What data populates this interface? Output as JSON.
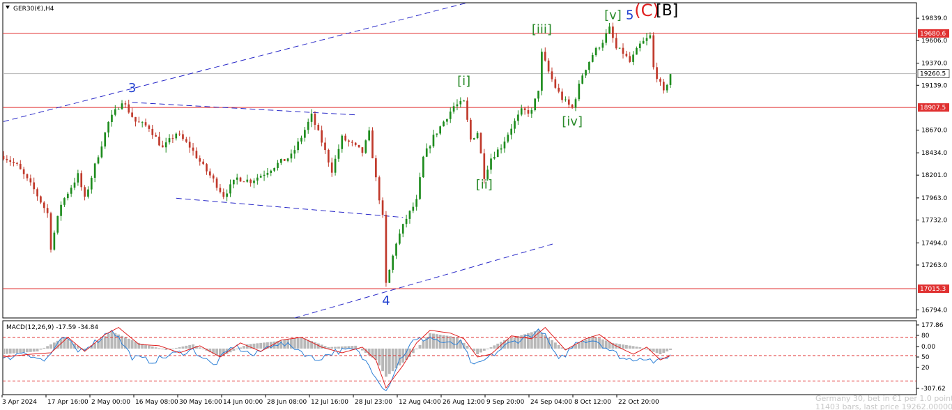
{
  "window": {
    "symbol_title": "GER30(€),H4"
  },
  "colors": {
    "background": "#ffffff",
    "bull_candle": "#1e8c1e",
    "bear_candle": "#c0392b",
    "level_line": "#e03030",
    "price_line": "#b4b4b4",
    "channel_line": "#2828c8",
    "wave_green": "#2a8a2a",
    "wave_blue": "#1f3fd0",
    "wave_red": "#e02020",
    "wave_black": "#000000",
    "macd_histogram": "#b8b8b8",
    "macd_signal": "#e02020",
    "macd_main": "#2b7fd6",
    "macd_level": "#e03030"
  },
  "chart_data": {
    "type": "candlestick",
    "symbol": "GER30(€)",
    "timeframe": "H4",
    "price_axis": {
      "range": [
        16710,
        20000
      ],
      "ticks": [
        "19839.0",
        "19606.0",
        "19370.0",
        "19139.0",
        "18670.0",
        "18434.0",
        "18201.0",
        "17963.0",
        "17732.0",
        "17494.0",
        "17263.0",
        "16794.0"
      ]
    },
    "time_axis": {
      "labels": [
        "3 Apr 2024",
        "17 Apr 16:00",
        "2 May 00:00",
        "16 May 08:00",
        "30 May 16:00",
        "14 Jun 00:00",
        "28 Jun 08:00",
        "12 Jul 16:00",
        "28 Jul 23:00",
        "12 Aug 04:00",
        "26 Aug 12:00",
        "9 Sep 20:00",
        "24 Sep 04:00",
        "8 Oct 12:00",
        "22 Oct 20:00"
      ]
    },
    "price_path": [
      [
        0,
        18400
      ],
      [
        4,
        18300
      ],
      [
        9,
        18050
      ],
      [
        13,
        17800
      ],
      [
        14,
        17450
      ],
      [
        17,
        17900
      ],
      [
        22,
        18200
      ],
      [
        24,
        17950
      ],
      [
        27,
        18300
      ],
      [
        31,
        18750
      ],
      [
        35,
        18980
      ],
      [
        39,
        18760
      ],
      [
        43,
        18700
      ],
      [
        47,
        18480
      ],
      [
        51,
        18640
      ],
      [
        55,
        18500
      ],
      [
        59,
        18290
      ],
      [
        62,
        18150
      ],
      [
        65,
        17990
      ],
      [
        69,
        18170
      ],
      [
        73,
        18140
      ],
      [
        77,
        18220
      ],
      [
        81,
        18320
      ],
      [
        85,
        18400
      ],
      [
        88,
        18600
      ],
      [
        91,
        18820
      ],
      [
        94,
        18550
      ],
      [
        97,
        18250
      ],
      [
        100,
        18590
      ],
      [
        103,
        18520
      ],
      [
        106,
        18440
      ],
      [
        108,
        18640
      ],
      [
        110,
        18160
      ],
      [
        112,
        17760
      ],
      [
        113,
        17060
      ],
      [
        116,
        17500
      ],
      [
        119,
        17750
      ],
      [
        122,
        17930
      ],
      [
        124,
        18380
      ],
      [
        127,
        18600
      ],
      [
        130,
        18760
      ],
      [
        133,
        18920
      ],
      [
        136,
        18960
      ],
      [
        138,
        18570
      ],
      [
        140,
        18650
      ],
      [
        142,
        18190
      ],
      [
        144,
        18380
      ],
      [
        147,
        18500
      ],
      [
        150,
        18700
      ],
      [
        153,
        18870
      ],
      [
        156,
        18860
      ],
      [
        158,
        19100
      ],
      [
        159,
        19470
      ],
      [
        161,
        19280
      ],
      [
        163,
        19120
      ],
      [
        165,
        19000
      ],
      [
        167,
        18930
      ],
      [
        168,
        18900
      ],
      [
        171,
        19250
      ],
      [
        174,
        19460
      ],
      [
        177,
        19600
      ],
      [
        179,
        19730
      ],
      [
        181,
        19520
      ],
      [
        183,
        19480
      ],
      [
        185,
        19380
      ],
      [
        188,
        19560
      ],
      [
        191,
        19650
      ],
      [
        192,
        19320
      ],
      [
        195,
        19060
      ],
      [
        197,
        19260
      ]
    ],
    "bars_count": 198,
    "levels": [
      {
        "label": "19680.6",
        "value": 19680.6,
        "kind": "resistance"
      },
      {
        "label": "18907.5",
        "value": 18907.5,
        "kind": "support"
      },
      {
        "label": "17015.3",
        "value": 17015.3,
        "kind": "support"
      }
    ],
    "current_price": {
      "label": "19260.5",
      "value": 19260.5
    },
    "wave_labels": [
      {
        "text": "3",
        "bar": 38,
        "price": 19070,
        "color": "wave_blue"
      },
      {
        "text": "4",
        "bar": 113,
        "price": 16850,
        "color": "wave_blue"
      },
      {
        "text": "[i]",
        "bar": 136,
        "price": 19140,
        "color": "wave_green"
      },
      {
        "text": "[ii]",
        "bar": 142,
        "price": 18060,
        "color": "wave_green"
      },
      {
        "text": "[iii]",
        "bar": 159,
        "price": 19680,
        "color": "wave_green"
      },
      {
        "text": "[iv]",
        "bar": 168,
        "price": 18720,
        "color": "wave_green"
      },
      {
        "text": "[v]",
        "bar": 180,
        "price": 19830,
        "color": "wave_green"
      },
      {
        "text": "5",
        "bar": 185,
        "price": 19830,
        "color": "wave_blue"
      },
      {
        "text": "(C)",
        "bar": 190,
        "price": 19860,
        "color": "wave_red"
      },
      {
        "text": "[B]",
        "bar": 196,
        "price": 19870,
        "color": "wave_black"
      }
    ],
    "channel_lines": [
      {
        "from": [
          0,
          18760
        ],
        "to": [
          138,
          20010
        ]
      },
      {
        "from": [
          86,
          16710
        ],
        "to": [
          163,
          17490
        ]
      },
      {
        "from": [
          38,
          18960
        ],
        "to": [
          104,
          18830
        ]
      },
      {
        "from": [
          51,
          17960
        ],
        "to": [
          118,
          17760
        ]
      }
    ],
    "macd": {
      "title": "MACD(12,26,9) -17.59 -34.84",
      "fast": 12,
      "slow": 26,
      "signal": 9,
      "main_value": -17.59,
      "signal_value": -34.84,
      "axis_labels": [
        "177.86",
        "80",
        "0.00",
        "50",
        "20",
        "-307.62"
      ],
      "levels": [
        80,
        -50,
        -230
      ],
      "range": [
        -307.62,
        177.86
      ],
      "signal_path": [
        [
          0,
          -60
        ],
        [
          8,
          -40
        ],
        [
          14,
          -30
        ],
        [
          19,
          80
        ],
        [
          24,
          -20
        ],
        [
          30,
          100
        ],
        [
          34,
          150
        ],
        [
          40,
          30
        ],
        [
          46,
          20
        ],
        [
          52,
          -30
        ],
        [
          58,
          20
        ],
        [
          64,
          -60
        ],
        [
          70,
          40
        ],
        [
          76,
          -20
        ],
        [
          82,
          60
        ],
        [
          88,
          80
        ],
        [
          94,
          10
        ],
        [
          100,
          -30
        ],
        [
          106,
          10
        ],
        [
          110,
          -80
        ],
        [
          113,
          -280
        ],
        [
          118,
          -120
        ],
        [
          122,
          40
        ],
        [
          126,
          130
        ],
        [
          132,
          110
        ],
        [
          136,
          70
        ],
        [
          140,
          -60
        ],
        [
          144,
          -40
        ],
        [
          150,
          90
        ],
        [
          156,
          70
        ],
        [
          160,
          150
        ],
        [
          166,
          -10
        ],
        [
          172,
          70
        ],
        [
          176,
          100
        ],
        [
          180,
          30
        ],
        [
          186,
          -40
        ],
        [
          190,
          10
        ],
        [
          194,
          -80
        ],
        [
          197,
          -50
        ]
      ],
      "main_path": [
        [
          0,
          -80
        ],
        [
          6,
          -20
        ],
        [
          12,
          -90
        ],
        [
          18,
          80
        ],
        [
          22,
          -20
        ],
        [
          28,
          60
        ],
        [
          32,
          140
        ],
        [
          38,
          -60
        ],
        [
          44,
          -90
        ],
        [
          50,
          -40
        ],
        [
          56,
          -10
        ],
        [
          62,
          -120
        ],
        [
          68,
          20
        ],
        [
          74,
          -50
        ],
        [
          80,
          40
        ],
        [
          86,
          10
        ],
        [
          92,
          -80
        ],
        [
          98,
          -20
        ],
        [
          104,
          -10
        ],
        [
          108,
          -120
        ],
        [
          113,
          -300
        ],
        [
          117,
          -80
        ],
        [
          121,
          50
        ],
        [
          126,
          80
        ],
        [
          131,
          30
        ],
        [
          135,
          40
        ],
        [
          139,
          -130
        ],
        [
          143,
          -70
        ],
        [
          149,
          30
        ],
        [
          154,
          80
        ],
        [
          159,
          130
        ],
        [
          164,
          -90
        ],
        [
          170,
          60
        ],
        [
          175,
          60
        ],
        [
          179,
          -10
        ],
        [
          184,
          -80
        ],
        [
          189,
          -60
        ],
        [
          193,
          -100
        ],
        [
          197,
          -40
        ]
      ],
      "histogram_path": [
        [
          0,
          -40
        ],
        [
          10,
          -20
        ],
        [
          18,
          80
        ],
        [
          24,
          -10
        ],
        [
          32,
          120
        ],
        [
          40,
          40
        ],
        [
          48,
          -10
        ],
        [
          56,
          30
        ],
        [
          64,
          -60
        ],
        [
          72,
          30
        ],
        [
          80,
          50
        ],
        [
          88,
          80
        ],
        [
          96,
          10
        ],
        [
          104,
          20
        ],
        [
          110,
          -80
        ],
        [
          113,
          -200
        ],
        [
          120,
          -60
        ],
        [
          126,
          110
        ],
        [
          134,
          80
        ],
        [
          140,
          -40
        ],
        [
          148,
          60
        ],
        [
          158,
          130
        ],
        [
          166,
          -10
        ],
        [
          174,
          90
        ],
        [
          180,
          40
        ],
        [
          188,
          10
        ],
        [
          194,
          -40
        ],
        [
          197,
          -10
        ]
      ]
    }
  },
  "watermark": {
    "line1": "Germany 30, bet in €1 per 1.0 points",
    "line2": "11403 bars, last price 19262.00000"
  }
}
